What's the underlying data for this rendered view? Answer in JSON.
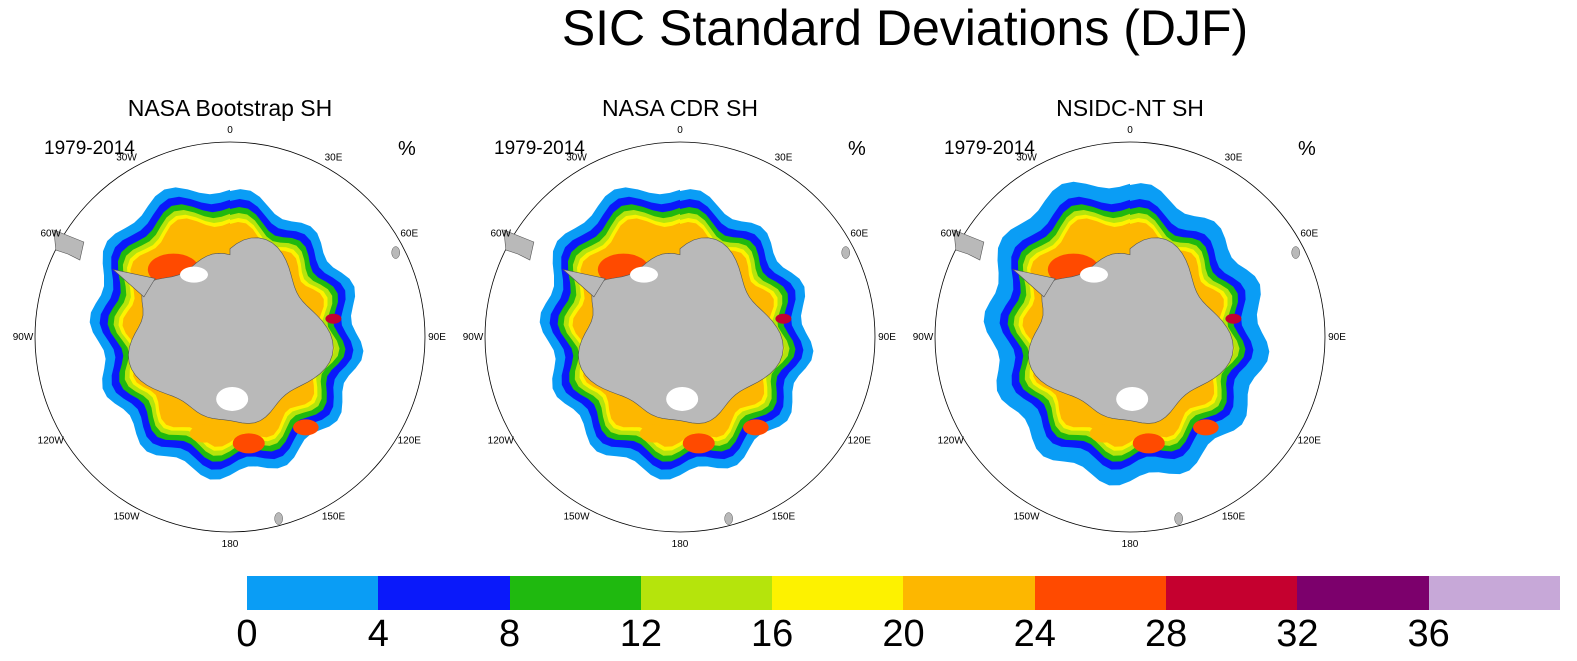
{
  "figure": {
    "title": "SIC Standard Deviations (DJF)"
  },
  "panels": [
    {
      "title": "NASA Bootstrap SH",
      "period": "1979-2014",
      "unit": "%"
    },
    {
      "title": "NASA CDR SH",
      "period": "1979-2014",
      "unit": "%"
    },
    {
      "title": "NSIDC-NT SH",
      "period": "1979-2014",
      "unit": "%"
    }
  ],
  "longitude_labels": [
    "0",
    "30E",
    "60E",
    "90E",
    "120E",
    "150E",
    "180",
    "150W",
    "120W",
    "90W",
    "60W",
    "30W"
  ],
  "colorbar": {
    "ticks": [
      "0",
      "4",
      "8",
      "12",
      "16",
      "20",
      "24",
      "28",
      "32",
      "36"
    ],
    "colors": [
      "#0a9df5",
      "#0a19fa",
      "#1fb90f",
      "#b5e40c",
      "#fdf200",
      "#fdb700",
      "#ff4a00",
      "#c5002f",
      "#7c006c",
      "#c7a8d8"
    ]
  },
  "map_colors": {
    "land": "#b9b9b9",
    "land_outline": "#555555"
  }
}
